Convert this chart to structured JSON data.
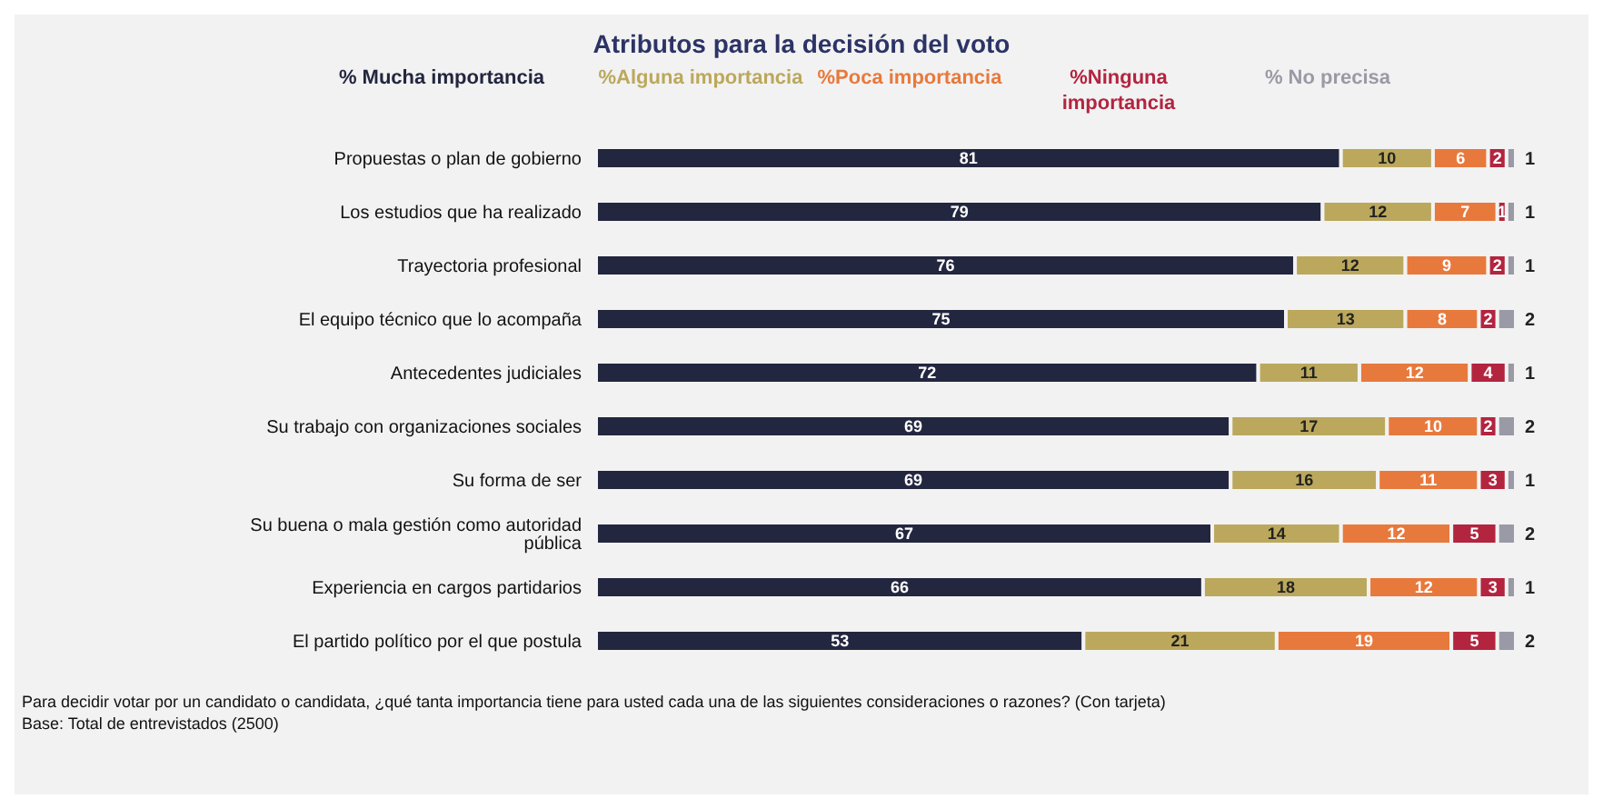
{
  "chart_data": {
    "type": "bar",
    "orientation": "horizontal",
    "stacked": true,
    "title": "Atributos para la decisión del voto",
    "categories": [
      "Propuestas o plan de gobierno",
      "Los estudios que ha realizado",
      "Trayectoria profesional",
      "El equipo técnico que lo  acompaña",
      "Antecedentes judiciales",
      "Su trabajo con organizaciones sociales",
      "Su forma de ser",
      "Su buena o mala gestión como autoridad pública",
      "Experiencia en cargos partidarios",
      "El partido político por el que postula"
    ],
    "series": [
      {
        "name": "% Mucha importancia",
        "color": "#23263f",
        "values": [
          81,
          79,
          76,
          75,
          72,
          69,
          69,
          67,
          66,
          53
        ]
      },
      {
        "name": "%Alguna importancia",
        "color": "#bba85c",
        "values": [
          10,
          12,
          12,
          13,
          11,
          17,
          16,
          14,
          18,
          21
        ]
      },
      {
        "name": "%Poca importancia",
        "color": "#e8793c",
        "values": [
          6,
          7,
          9,
          8,
          12,
          10,
          11,
          12,
          12,
          19
        ]
      },
      {
        "name": "%Ninguna importancia",
        "color": "#b3243f",
        "values": [
          2,
          1,
          2,
          2,
          4,
          2,
          3,
          5,
          3,
          5
        ]
      },
      {
        "name": "% No precisa",
        "color": "#9a9aa6",
        "values": [
          1,
          1,
          1,
          2,
          1,
          2,
          1,
          2,
          1,
          2
        ]
      }
    ],
    "xlim": [
      0,
      100
    ],
    "tick_labels": "y",
    "data_labels": true,
    "legend": "top",
    "grid": false,
    "annotations": [
      "Para decidir votar por un candidato o candidata, ¿qué tanta importancia tiene para usted cada una de las siguientes consideraciones o razones? (Con tarjeta)",
      "Base: Total de entrevistados (2500)"
    ]
  }
}
